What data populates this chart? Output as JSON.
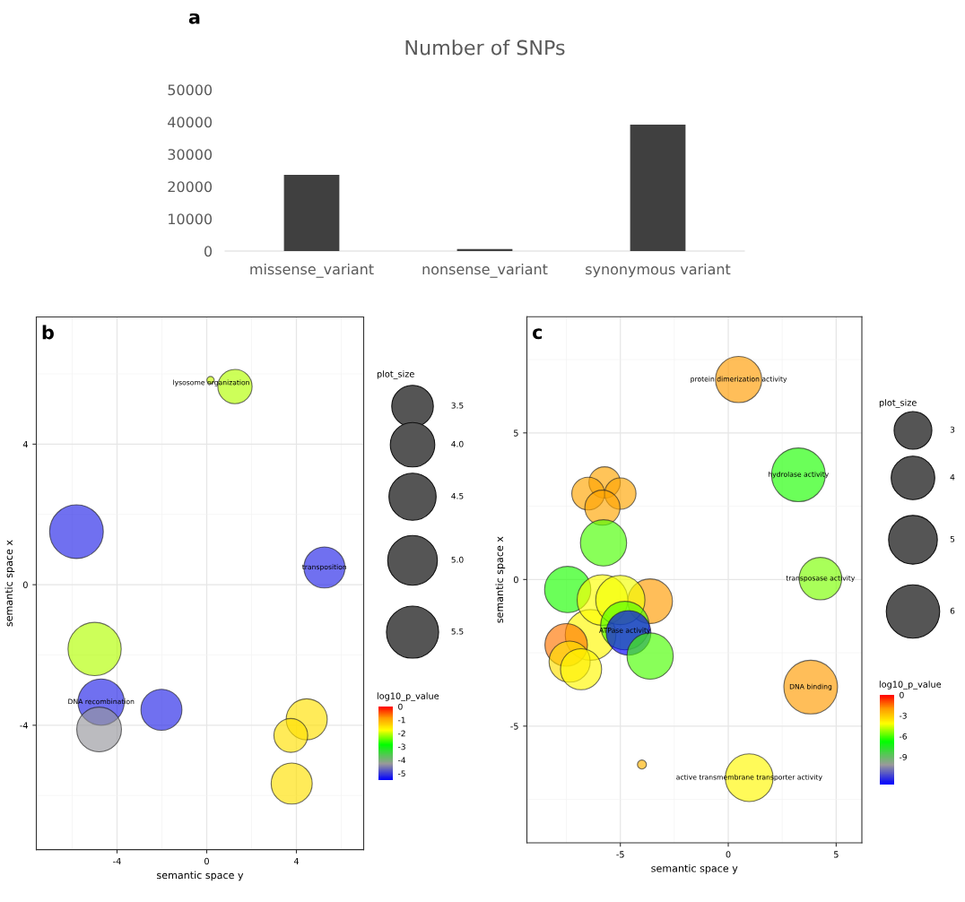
{
  "chart_data": [
    {
      "type": "bar",
      "title": "Number of SNPs",
      "annotations": [
        "a"
      ],
      "categories": [
        "missense_variant",
        "nonsense_variant",
        "synonymous variant"
      ],
      "values": [
        23600,
        600,
        39200
      ],
      "color": "#404040",
      "ylim": [
        0,
        50000
      ],
      "yticks": [
        0,
        10000,
        20000,
        30000,
        40000,
        50000
      ],
      "grid": false
    },
    {
      "type": "bubble",
      "annotations": [
        "b",
        {
          "text": "lysosome organization",
          "x": 0.2,
          "y": 5.74
        },
        {
          "text": "transposition",
          "x": 5.25,
          "y": 0.49
        },
        {
          "text": "DNA recombination",
          "x": -4.71,
          "y": -3.34
        }
      ],
      "xlabel": "semantic space y",
      "ylabel": "semantic space x",
      "legend_title": "plot_size",
      "clabel": "log10_p_value",
      "x": [
        0.17,
        1.26,
        -5.81,
        5.25,
        -5.0,
        -4.71,
        -4.8,
        -2.02,
        4.46,
        3.75,
        3.79
      ],
      "values": [
        5.82,
        5.64,
        1.51,
        0.49,
        -1.83,
        -3.34,
        -4.12,
        -3.56,
        -3.83,
        -4.29,
        -5.66
      ],
      "sizes": [
        0.11,
        2.38,
        5.84,
        3.41,
        5.73,
        4.34,
        4.05,
        3.41,
        3.41,
        2.31,
        3.41
      ],
      "cvalues": [
        -2.0,
        -2.1,
        -5.2,
        -5.2,
        -2.1,
        -5.2,
        -4.3,
        -5.2,
        -1.5,
        -1.5,
        -1.5
      ],
      "size_legend": [
        {
          "value": 3.5,
          "label": "3.5"
        },
        {
          "value": 4,
          "label": "4.0"
        },
        {
          "value": 4.5,
          "label": "4.5"
        },
        {
          "value": 5,
          "label": "5.0"
        },
        {
          "value": 5.5,
          "label": "5.5"
        }
      ],
      "clim": [
        -5.5,
        0
      ],
      "cticks": [
        0,
        -1,
        -2,
        -3,
        -4,
        -5
      ],
      "xlim": [
        -7.6,
        7.0
      ],
      "ylim": [
        -7.54,
        7.62
      ],
      "xticks": [
        -4,
        0,
        4
      ],
      "yticks": [
        -4,
        0,
        4
      ],
      "grid": true
    },
    {
      "type": "bubble",
      "annotations": [
        "c",
        {
          "text": "protein dimerization activity",
          "x": 0.48,
          "y": 6.82
        },
        {
          "text": "hydrolase activity",
          "x": 3.25,
          "y": 3.57
        },
        {
          "text": "transposase activity",
          "x": 4.27,
          "y": 0.03
        },
        {
          "text": "DNA binding",
          "x": 3.82,
          "y": -3.67
        },
        {
          "text": "active transmembrane transporter activity",
          "x": 0.97,
          "y": -6.76
        },
        {
          "text": "ATPase activity",
          "x": -4.79,
          "y": -1.75
        }
      ],
      "xlabel": "semantic space y",
      "ylabel": "semantic space x",
      "legend_title": "plot_size",
      "clabel": "log10_p_value",
      "x": [
        0.48,
        3.25,
        4.27,
        3.82,
        0.97,
        -4.0,
        -5.73,
        -6.49,
        -5.0,
        -5.83,
        -5.78,
        -7.44,
        -3.62,
        -6.38,
        -5.83,
        -5.0,
        -4.79,
        -4.62,
        -3.62,
        -7.51,
        -7.35,
        -6.82
      ],
      "values": [
        6.82,
        3.57,
        0.03,
        -3.67,
        -6.76,
        -6.31,
        3.31,
        2.93,
        2.93,
        2.45,
        1.25,
        -0.34,
        -0.74,
        -1.89,
        -0.7,
        -0.7,
        -1.57,
        -1.82,
        -2.61,
        -2.23,
        -2.8,
        -3.06
      ],
      "sizes": [
        4.5,
        6.08,
        3.81,
        6.08,
        4.8,
        0.17,
        2.07,
        2.27,
        2.07,
        2.6,
        4.5,
        4.5,
        4.2,
        5.4,
        5.4,
        5.1,
        4.95,
        4.2,
        4.5,
        3.81,
        3.56,
        3.56
      ],
      "cvalues": [
        -2,
        -6.5,
        -5.5,
        -2,
        -4,
        -2.5,
        -2.2,
        -2.2,
        -2.2,
        -2.2,
        -6,
        -6.5,
        -2,
        -4,
        -4.2,
        -4.3,
        -6,
        -13,
        -6,
        -1.5,
        -3.5,
        -4
      ],
      "size_legend": [
        {
          "value": 3,
          "label": "3"
        },
        {
          "value": 4,
          "label": "4"
        },
        {
          "value": 5,
          "label": "5"
        },
        {
          "value": 6,
          "label": "6"
        }
      ],
      "clim": [
        -13,
        0
      ],
      "cticks": [
        0,
        -3,
        -6,
        -9
      ],
      "xlim": [
        -9.33,
        6.19
      ],
      "ylim": [
        -8.98,
        8.96
      ],
      "xticks": [
        -5,
        0,
        5
      ],
      "yticks": [
        -5,
        0,
        5
      ],
      "grid": true
    }
  ]
}
